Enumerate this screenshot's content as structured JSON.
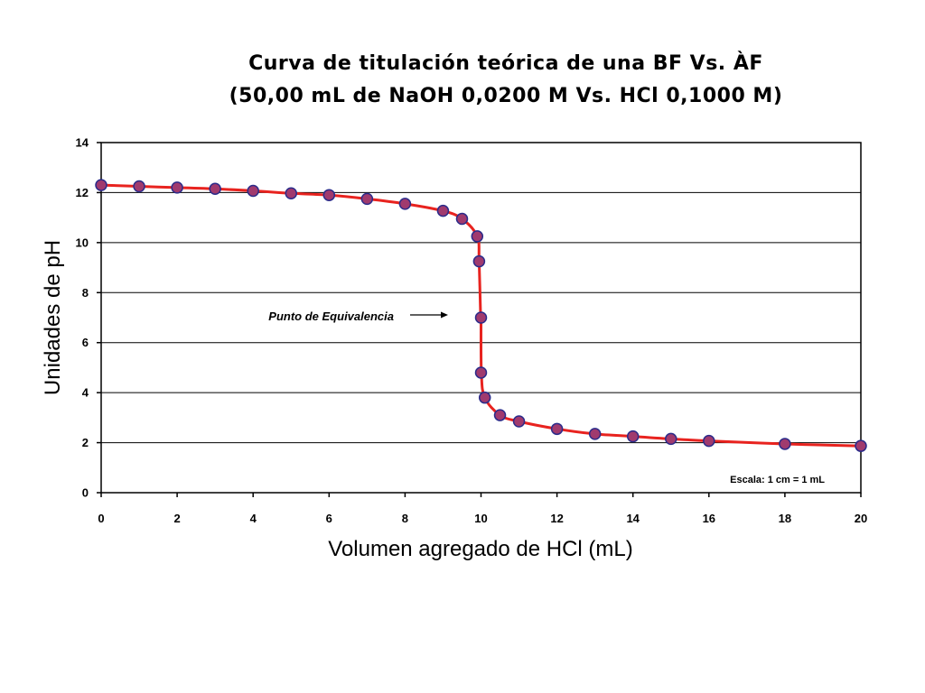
{
  "chart_data": {
    "type": "line",
    "title": "Curva de titulación teórica de una BF Vs. ÀF",
    "subtitle": "(50,00 mL de NaOH 0,0200 M Vs. HCl 0,1000 M)",
    "xlabel": "Volumen agregado de HCl (mL)",
    "ylabel": "Unidades de pH",
    "xlim": [
      0,
      20
    ],
    "ylim": [
      0,
      14
    ],
    "x_ticks": [
      "0",
      "2",
      "4",
      "6",
      "8",
      "10",
      "12",
      "14",
      "16",
      "18",
      "20"
    ],
    "y_ticks": [
      "0",
      "2",
      "4",
      "6",
      "8",
      "10",
      "12",
      "14"
    ],
    "grid": "horizontal",
    "line_color": "#e8231f",
    "marker_color": "#a03a6e",
    "marker_edge_color": "#2b2b8a",
    "series": [
      {
        "x": [
          0,
          1,
          2,
          3,
          4,
          5,
          6,
          7,
          8,
          9,
          9.5,
          9.9,
          9.95,
          9.99,
          10.0,
          10.01,
          10.1,
          10.5,
          11,
          12,
          13,
          14,
          15,
          16,
          18,
          20
        ],
        "y": [
          12.3,
          12.25,
          12.2,
          12.15,
          12.07,
          11.97,
          11.9,
          11.75,
          11.55,
          11.27,
          10.95,
          10.25,
          9.25,
          7.0,
          7.0,
          4.8,
          3.8,
          3.1,
          2.85,
          2.55,
          2.35,
          2.25,
          2.15,
          2.07,
          1.95,
          1.87
        ]
      }
    ],
    "markers": [
      {
        "x": 0,
        "y": 12.3
      },
      {
        "x": 1,
        "y": 12.25
      },
      {
        "x": 2,
        "y": 12.2
      },
      {
        "x": 3,
        "y": 12.15
      },
      {
        "x": 4,
        "y": 12.07
      },
      {
        "x": 5,
        "y": 11.97
      },
      {
        "x": 6,
        "y": 11.9
      },
      {
        "x": 7,
        "y": 11.75
      },
      {
        "x": 8,
        "y": 11.55
      },
      {
        "x": 9,
        "y": 11.27
      },
      {
        "x": 9.5,
        "y": 10.95
      },
      {
        "x": 9.9,
        "y": 10.25
      },
      {
        "x": 9.95,
        "y": 9.25
      },
      {
        "x": 10.0,
        "y": 7.0
      },
      {
        "x": 10.0,
        "y": 4.8
      },
      {
        "x": 10.1,
        "y": 3.8
      },
      {
        "x": 10.5,
        "y": 3.1
      },
      {
        "x": 11,
        "y": 2.85
      },
      {
        "x": 12,
        "y": 2.55
      },
      {
        "x": 13,
        "y": 2.35
      },
      {
        "x": 14,
        "y": 2.25
      },
      {
        "x": 15,
        "y": 2.15
      },
      {
        "x": 16,
        "y": 2.07
      },
      {
        "x": 18,
        "y": 1.95
      },
      {
        "x": 20,
        "y": 1.87
      }
    ],
    "annotations": {
      "equivalence_label": "Punto de Equivalencia",
      "equivalence_point": {
        "x": 10.0,
        "y": 7.0
      },
      "scale_note": "Escala: 1 cm = 1 mL"
    }
  }
}
